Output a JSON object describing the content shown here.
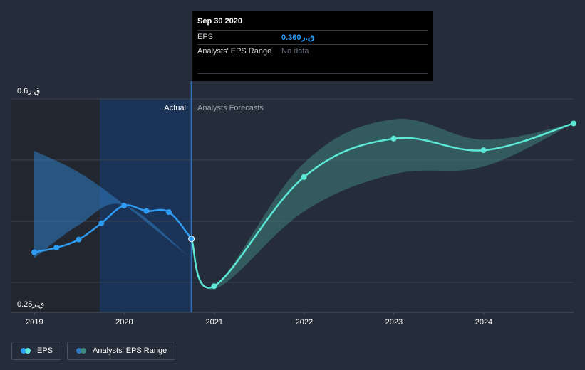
{
  "chart_data": {
    "type": "line",
    "y_axis": {
      "min": 0.25,
      "max": 0.6,
      "top_label": "0.6ق.ر",
      "bottom_label": "0.25ق.ر",
      "gridlines": true
    },
    "x_axis": {
      "ticks": [
        "2019",
        "2020",
        "2021",
        "2022",
        "2023",
        "2024"
      ],
      "range": [
        "2018-12-31",
        "2024-12-31"
      ]
    },
    "regions": {
      "actual_label": "Actual",
      "forecast_label": "Analysts Forecasts",
      "split_date": "2020-09-30"
    },
    "series": [
      {
        "name": "EPS",
        "kind": "actual",
        "color": "#2f9cf4",
        "points": [
          {
            "x": "2018-12-31",
            "y": 0.337
          },
          {
            "x": "2019-03-31",
            "y": 0.345
          },
          {
            "x": "2019-06-30",
            "y": 0.359
          },
          {
            "x": "2019-09-30",
            "y": 0.387
          },
          {
            "x": "2019-12-31",
            "y": 0.417
          },
          {
            "x": "2020-03-31",
            "y": 0.408
          },
          {
            "x": "2020-06-30",
            "y": 0.406
          },
          {
            "x": "2020-09-30",
            "y": 0.36
          }
        ]
      },
      {
        "name": "EPS",
        "kind": "forecast",
        "color": "#5ce8d6",
        "points": [
          {
            "x": "2020-09-30",
            "y": 0.36
          },
          {
            "x": "2020-12-31",
            "y": 0.279
          },
          {
            "x": "2021-12-31",
            "y": 0.466
          },
          {
            "x": "2022-12-31",
            "y": 0.532
          },
          {
            "x": "2023-12-31",
            "y": 0.512
          },
          {
            "x": "2024-12-31",
            "y": 0.558
          }
        ]
      },
      {
        "name": "Analysts' EPS Range",
        "kind": "range_actual",
        "color": "#2f7bc4",
        "upper": [
          {
            "x": "2018-12-31",
            "y": 0.511
          },
          {
            "x": "2019-06-30",
            "y": 0.474
          },
          {
            "x": "2019-12-31",
            "y": 0.419
          },
          {
            "x": "2020-09-30",
            "y": 0.326
          }
        ],
        "lower": [
          {
            "x": "2018-12-31",
            "y": 0.327
          },
          {
            "x": "2019-06-30",
            "y": 0.384
          },
          {
            "x": "2019-12-31",
            "y": 0.418
          },
          {
            "x": "2020-09-30",
            "y": 0.326
          }
        ]
      },
      {
        "name": "Analysts' EPS Range",
        "kind": "range_forecast",
        "color": "#3f8a82",
        "upper": [
          {
            "x": "2020-09-30",
            "y": 0.36
          },
          {
            "x": "2020-12-31",
            "y": 0.279
          },
          {
            "x": "2021-12-31",
            "y": 0.49
          },
          {
            "x": "2022-12-31",
            "y": 0.565
          },
          {
            "x": "2023-12-31",
            "y": 0.53
          },
          {
            "x": "2024-12-31",
            "y": 0.558
          }
        ],
        "lower": [
          {
            "x": "2020-09-30",
            "y": 0.36
          },
          {
            "x": "2020-12-31",
            "y": 0.274
          },
          {
            "x": "2021-12-31",
            "y": 0.407
          },
          {
            "x": "2022-12-31",
            "y": 0.471
          },
          {
            "x": "2023-12-31",
            "y": 0.484
          },
          {
            "x": "2024-12-31",
            "y": 0.558
          }
        ]
      }
    ]
  },
  "tooltip": {
    "date": "Sep 30 2020",
    "rows": [
      {
        "label": "EPS",
        "value": "0.360ق.ر"
      },
      {
        "label": "Analysts' EPS Range",
        "value": "No data"
      }
    ]
  },
  "legend": {
    "items": [
      {
        "label": "EPS",
        "colors": [
          "#2f9cf4",
          "#5ce8d6"
        ]
      },
      {
        "label": "Analysts' EPS Range",
        "colors": [
          "#2f7bc4",
          "#3f8a82"
        ]
      }
    ]
  }
}
